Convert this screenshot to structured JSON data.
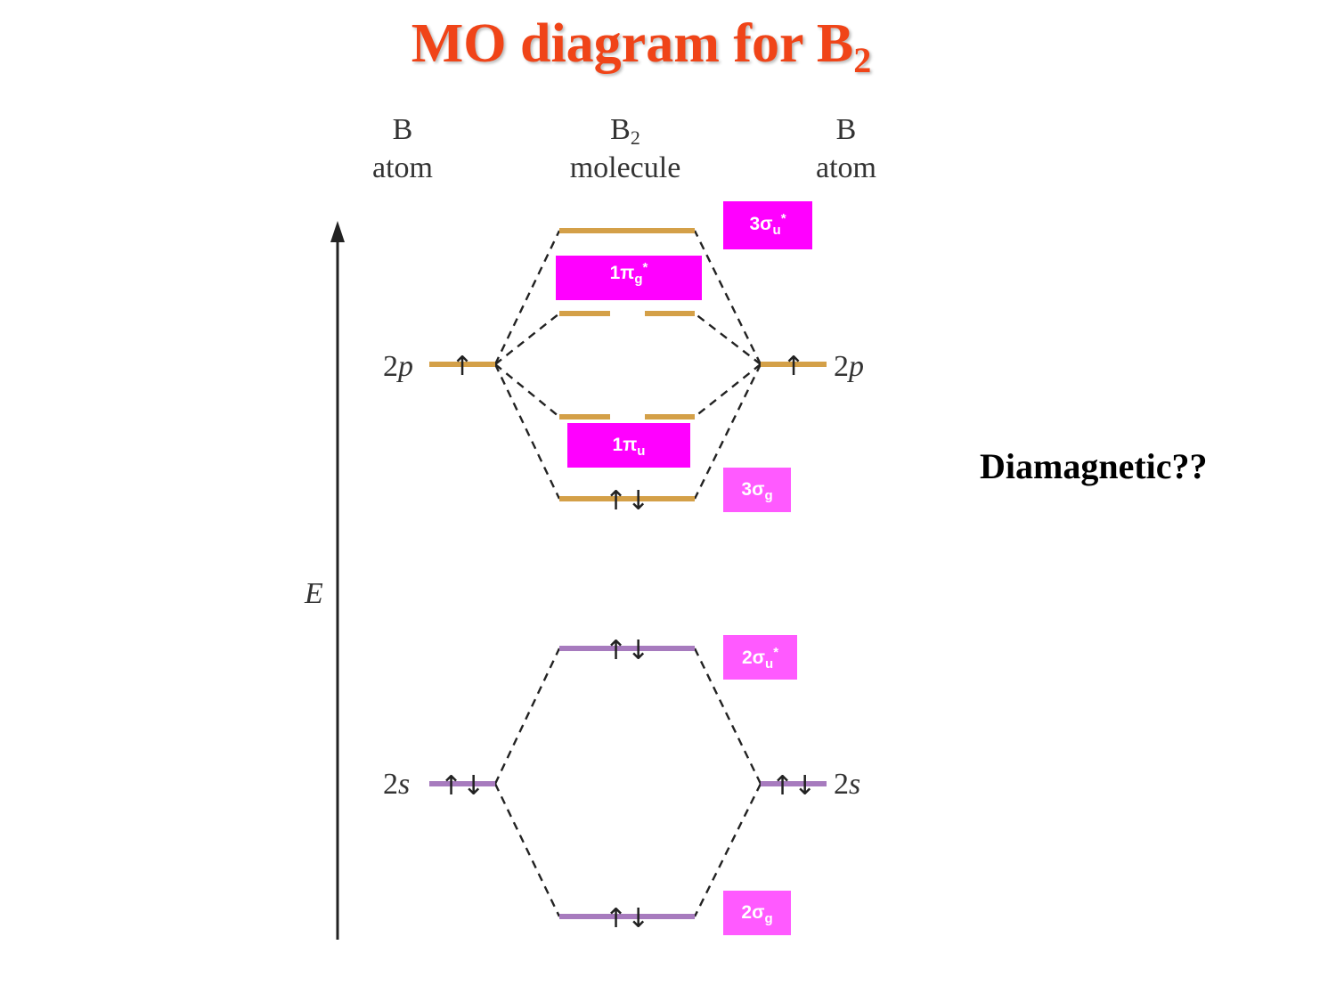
{
  "title": {
    "text": "MO diagram for B",
    "subscript": "2"
  },
  "columns": {
    "left": {
      "line1": "B",
      "line2": "atom"
    },
    "middle": {
      "line1": "B",
      "line1_sub": "2",
      "line2": "molecule"
    },
    "right": {
      "line1": "B",
      "line2": "atom"
    }
  },
  "axis_label": "E",
  "atomic_orbitals": {
    "left_2p": {
      "num": "2",
      "letter": "p"
    },
    "right_2p": {
      "num": "2",
      "letter": "p"
    },
    "left_2s": {
      "num": "2",
      "letter": "s"
    },
    "right_2s": {
      "num": "2",
      "letter": "s"
    }
  },
  "mo_tags": {
    "sigma_u_3": {
      "num": "3",
      "greek": "σ",
      "sub": "u",
      "sup": "*"
    },
    "pi_g_1": {
      "num": "1",
      "greek": "π",
      "sub": "g",
      "sup": "*"
    },
    "pi_u_1": {
      "num": "1",
      "greek": "π",
      "sub": "u",
      "sup": ""
    },
    "sigma_g_3": {
      "num": "3",
      "greek": "σ",
      "sub": "g",
      "sup": ""
    },
    "sigma_u_2": {
      "num": "2",
      "greek": "σ",
      "sub": "u",
      "sup": "*"
    },
    "sigma_g_2": {
      "num": "2",
      "greek": "σ",
      "sub": "g",
      "sup": ""
    }
  },
  "electrons": {
    "left_2p": "↑",
    "right_2p": "↑",
    "sigma_g_3": "↑↓",
    "sigma_u_2": "↑↓",
    "sigma_g_2": "↑↓",
    "left_2s": "↑↓",
    "right_2s": "↑↓"
  },
  "note": "Diamagnetic??",
  "colors": {
    "title": "#f04418",
    "p_levels": "#d4a048",
    "s_levels": "#a77bbe",
    "tag_strong": "#ff00ff",
    "tag_light": "#ff5aff"
  }
}
